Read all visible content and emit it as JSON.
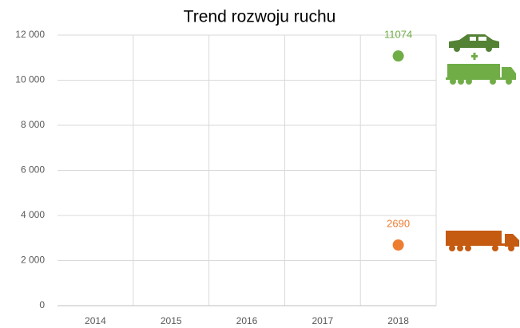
{
  "chart_data": {
    "type": "scatter",
    "title": "Trend rozwoju ruchu",
    "categories": [
      "2014",
      "2015",
      "2016",
      "2017",
      "2018"
    ],
    "series": [
      {
        "color": "#70ad47",
        "values": [
          null,
          null,
          null,
          null,
          11074
        ]
      },
      {
        "color": "#ed7d31",
        "values": [
          null,
          null,
          null,
          null,
          2690
        ]
      }
    ],
    "ylim": [
      0,
      12000
    ],
    "yticks": [
      0,
      {
        "value": 2000,
        "label": "2 000"
      },
      {
        "value": 4000,
        "label": "4 000"
      },
      {
        "value": 6000,
        "label": "6 000"
      },
      {
        "value": 8000,
        "label": "8 000"
      },
      {
        "value": 10000,
        "label": "10 000"
      },
      {
        "value": 12000,
        "label": "12 000"
      }
    ],
    "grid": true
  }
}
